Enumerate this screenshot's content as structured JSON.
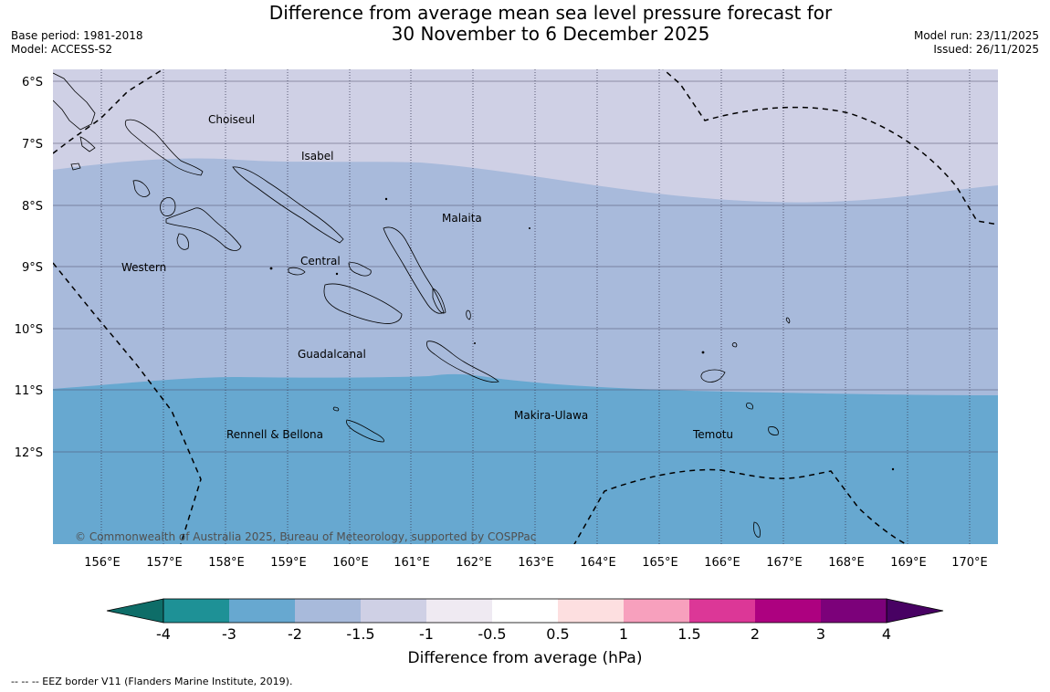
{
  "header": {
    "title_line1": "Difference from average mean sea level pressure forecast for",
    "title_line2": "30 November to 6 December 2025",
    "base_period": "Base period: 1981-2018",
    "model": "Model: ACCESS-S2",
    "model_run": "Model run: 23/11/2025",
    "issued": "Issued: 26/11/2025"
  },
  "map": {
    "copyright": "© Commonwealth of Australia 2025, Bureau of Meteorology, supported by COSPPac",
    "lon_ticks": [
      "156°E",
      "157°E",
      "158°E",
      "159°E",
      "160°E",
      "161°E",
      "162°E",
      "163°E",
      "164°E",
      "165°E",
      "166°E",
      "167°E",
      "168°E",
      "169°E",
      "170°E"
    ],
    "lat_ticks": [
      "6°S",
      "7°S",
      "8°S",
      "9°S",
      "10°S",
      "11°S",
      "12°S"
    ],
    "regions": [
      "Choiseul",
      "Isabel",
      "Malaita",
      "Western",
      "Central",
      "Guadalcanal",
      "Makira-Ulawa",
      "Rennell & Bellona",
      "Temotu"
    ],
    "shading_colors": {
      "minus_1_5_to_minus_1": "#cfd0e5",
      "minus_2_to_minus_1_5": "#a8badb",
      "minus_3_to_minus_2": "#67a8d0"
    }
  },
  "colorbar": {
    "title": "Difference from average (hPa)",
    "labels": [
      "-4",
      "-3",
      "-2",
      "-1.5",
      "-1",
      "-0.5",
      "0.5",
      "1",
      "1.5",
      "2",
      "3",
      "4"
    ],
    "colors": [
      "#1e9196",
      "#67a8d0",
      "#a8badb",
      "#cfd0e5",
      "#efeaf2",
      "#ffffff",
      "#fddfe0",
      "#f7a0bd",
      "#dc3797",
      "#ad0180",
      "#7c017a"
    ],
    "under_color": "#0e6d68",
    "over_color": "#480163"
  },
  "footnote": "--  --  -- EEZ border V11 (Flanders Marine Institute, 2019)."
}
